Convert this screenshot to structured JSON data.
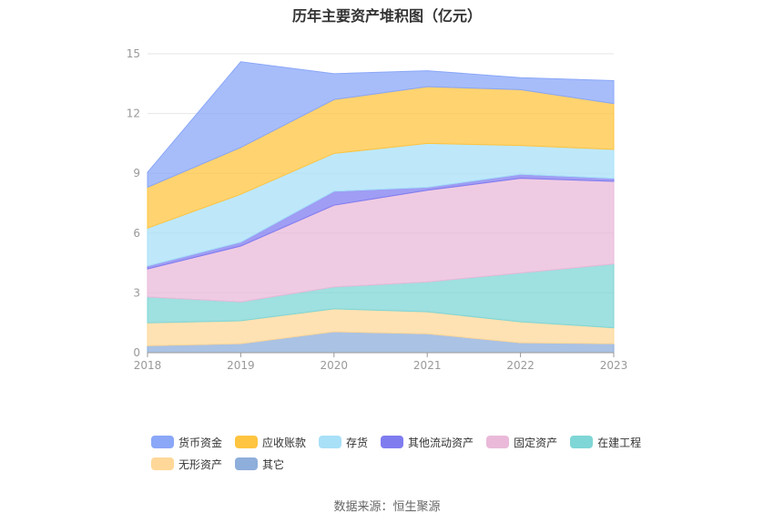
{
  "title": "历年主要资产堆积图（亿元）",
  "source": "数据来源：恒生聚源",
  "chart_data": {
    "type": "area",
    "stacked": true,
    "x": [
      "2018",
      "2019",
      "2020",
      "2021",
      "2022",
      "2023"
    ],
    "ylim": [
      0,
      15
    ],
    "yticks": [
      "0",
      "3",
      "6",
      "9",
      "12",
      "15"
    ],
    "grid": true,
    "legend_position": "bottom",
    "series": [
      {
        "name": "其它",
        "color": "#8eaedb",
        "values": [
          0.35,
          0.45,
          1.05,
          0.95,
          0.5,
          0.45
        ]
      },
      {
        "name": "无形资产",
        "color": "#ffd899",
        "values": [
          1.15,
          1.15,
          1.15,
          1.1,
          1.05,
          0.8
        ]
      },
      {
        "name": "在建工程",
        "color": "#7fd6d6",
        "values": [
          1.3,
          0.95,
          1.1,
          1.5,
          2.45,
          3.2
        ]
      },
      {
        "name": "固定资产",
        "color": "#eab9d9",
        "values": [
          1.4,
          2.8,
          4.1,
          4.6,
          4.75,
          4.15
        ]
      },
      {
        "name": "其他流动资产",
        "color": "#7f7cf0",
        "values": [
          0.15,
          0.2,
          0.7,
          0.15,
          0.2,
          0.15
        ]
      },
      {
        "name": "存货",
        "color": "#a8e0f8",
        "values": [
          1.9,
          2.4,
          1.9,
          2.2,
          1.45,
          1.45
        ]
      },
      {
        "name": "应收账款",
        "color": "#ffc440",
        "values": [
          2.05,
          2.35,
          2.7,
          2.85,
          2.8,
          2.3
        ]
      },
      {
        "name": "货币资金",
        "color": "#8aa7f8",
        "values": [
          0.75,
          4.3,
          1.3,
          0.8,
          0.6,
          1.15
        ]
      }
    ],
    "legend_order": [
      "货币资金",
      "应收账款",
      "存货",
      "其他流动资产",
      "固定资产",
      "在建工程",
      "无形资产",
      "其它"
    ]
  }
}
